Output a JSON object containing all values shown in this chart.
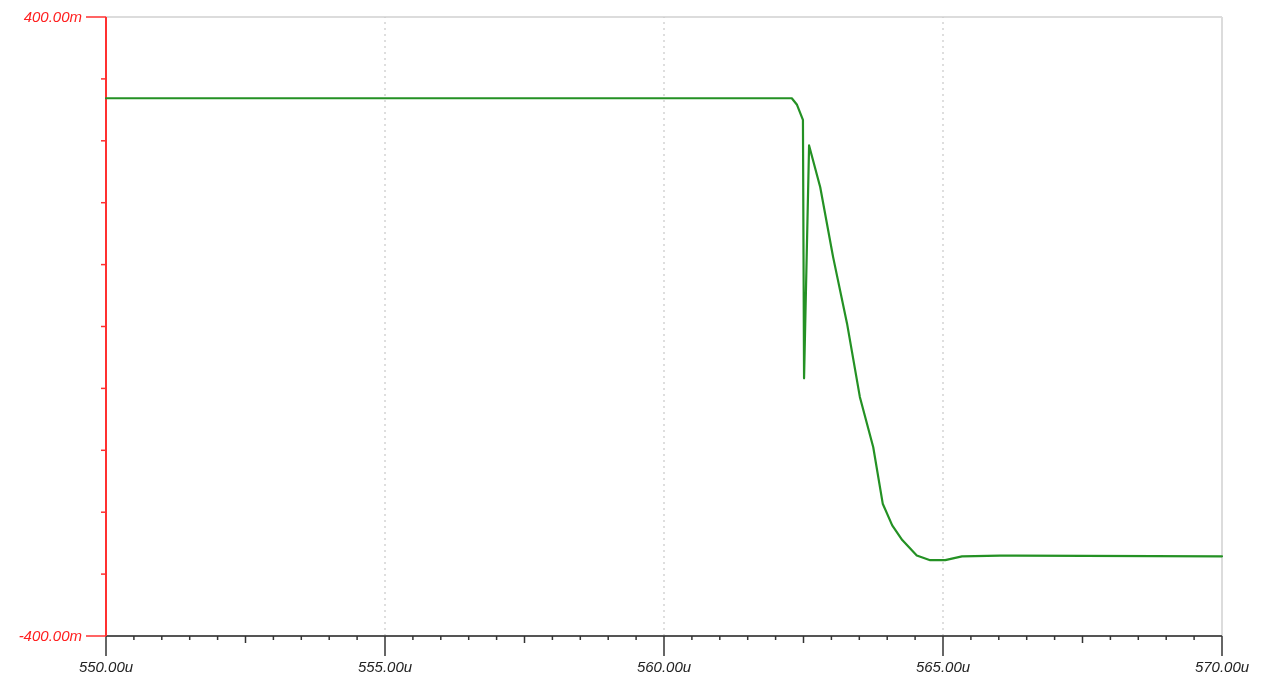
{
  "chart_data": {
    "type": "line",
    "x": [
      550,
      562.29,
      562.38,
      562.49,
      562.51,
      562.6,
      562.8,
      563.03,
      563.28,
      563.51,
      563.75,
      563.92,
      564.09,
      564.27,
      564.53,
      564.77,
      565.04,
      565.34,
      566.02,
      570
    ],
    "values": [
      295,
      295,
      287,
      267,
      -67,
      234,
      180,
      90,
      4,
      -91,
      -156,
      -229,
      -257,
      -276,
      -296,
      -302,
      -302,
      -297,
      -296,
      -297
    ],
    "color": "#249124",
    "line_style": "solid",
    "marker": "none",
    "grid": "x",
    "xlim": [
      550,
      570
    ],
    "xticks": [
      {
        "value": 550,
        "label": "550.00u"
      },
      {
        "value": 550.5,
        "label": null
      },
      {
        "value": 551,
        "label": null
      },
      {
        "value": 551.5,
        "label": null
      },
      {
        "value": 552,
        "label": null
      },
      {
        "value": 552.5,
        "label": null
      },
      {
        "value": 553,
        "label": null
      },
      {
        "value": 553.5,
        "label": null
      },
      {
        "value": 554,
        "label": null
      },
      {
        "value": 554.5,
        "label": null
      },
      {
        "value": 555,
        "label": "555.00u"
      },
      {
        "value": 555.5,
        "label": null
      },
      {
        "value": 556,
        "label": null
      },
      {
        "value": 556.5,
        "label": null
      },
      {
        "value": 557,
        "label": null
      },
      {
        "value": 557.5,
        "label": null
      },
      {
        "value": 558,
        "label": null
      },
      {
        "value": 558.5,
        "label": null
      },
      {
        "value": 559,
        "label": null
      },
      {
        "value": 559.5,
        "label": null
      },
      {
        "value": 560,
        "label": "560.00u"
      },
      {
        "value": 560.5,
        "label": null
      },
      {
        "value": 561,
        "label": null
      },
      {
        "value": 561.5,
        "label": null
      },
      {
        "value": 562,
        "label": null
      },
      {
        "value": 562.5,
        "label": null
      },
      {
        "value": 563,
        "label": null
      },
      {
        "value": 563.5,
        "label": null
      },
      {
        "value": 564,
        "label": null
      },
      {
        "value": 564.5,
        "label": null
      },
      {
        "value": 565,
        "label": "565.00u"
      },
      {
        "value": 565.5,
        "label": null
      },
      {
        "value": 566,
        "label": null
      },
      {
        "value": 566.5,
        "label": null
      },
      {
        "value": 567,
        "label": null
      },
      {
        "value": 567.5,
        "label": null
      },
      {
        "value": 568,
        "label": null
      },
      {
        "value": 568.5,
        "label": null
      },
      {
        "value": 569,
        "label": null
      },
      {
        "value": 569.5,
        "label": null
      },
      {
        "value": 570,
        "label": "570.00u"
      }
    ],
    "ylim": [
      -400,
      400
    ],
    "yticks": [
      {
        "value": -400,
        "label": "-400.00m"
      },
      {
        "value": -320,
        "label": null
      },
      {
        "value": -240,
        "label": null
      },
      {
        "value": -160,
        "label": null
      },
      {
        "value": -80,
        "label": null
      },
      {
        "value": 0,
        "label": null
      },
      {
        "value": 80,
        "label": null
      },
      {
        "value": 160,
        "label": null
      },
      {
        "value": 240,
        "label": null
      },
      {
        "value": 320,
        "label": null
      },
      {
        "value": 400,
        "label": "400.00m"
      }
    ]
  }
}
